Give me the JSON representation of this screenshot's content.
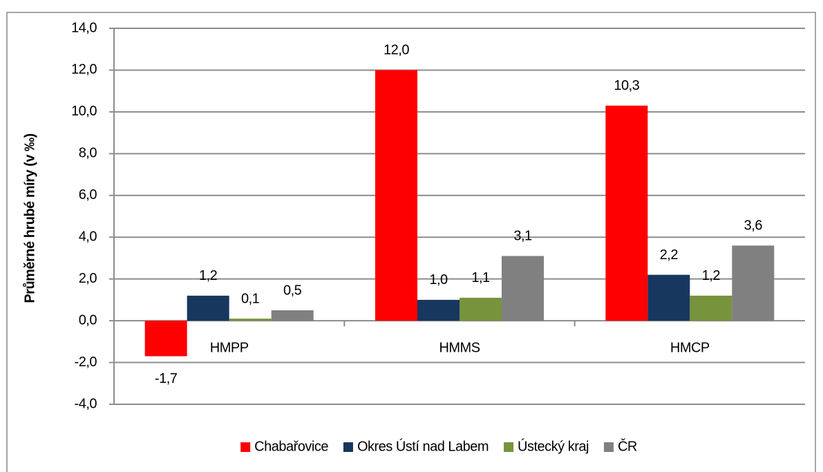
{
  "chart_data": {
    "type": "bar",
    "y_label": "Průměrné hrubé míry (v ‰)",
    "categories": [
      "HMPP",
      "HMMS",
      "HMCP"
    ],
    "series": [
      {
        "name": "Chabařovice",
        "color": "#ff0000",
        "values": [
          -1.7,
          12.0,
          10.3
        ],
        "value_labels": [
          "-1,7",
          "12,0",
          "10,3"
        ]
      },
      {
        "name": "Okres Ústí nad Labem",
        "color": "#17375e",
        "values": [
          1.2,
          1.0,
          2.2
        ],
        "value_labels": [
          "1,2",
          "1,0",
          "2,2"
        ]
      },
      {
        "name": "Ústecký kraj",
        "color": "#77933c",
        "values": [
          0.1,
          1.1,
          1.2
        ],
        "value_labels": [
          "0,1",
          "1,1",
          "1,2"
        ]
      },
      {
        "name": "ČR",
        "color": "#808080",
        "values": [
          0.5,
          3.1,
          3.6
        ],
        "value_labels": [
          "0,5",
          "3,1",
          "3,6"
        ]
      }
    ],
    "ylim": [
      -4,
      14
    ],
    "yticks": [
      {
        "value": -4,
        "label": "-4,0"
      },
      {
        "value": -2,
        "label": "-2,0"
      },
      {
        "value": 0,
        "label": "0,0"
      },
      {
        "value": 2,
        "label": "2,0"
      },
      {
        "value": 4,
        "label": "4,0"
      },
      {
        "value": 6,
        "label": "6,0"
      },
      {
        "value": 8,
        "label": "8,0"
      },
      {
        "value": 10,
        "label": "10,0"
      },
      {
        "value": 12,
        "label": "12,0"
      },
      {
        "value": 14,
        "label": "14,0"
      }
    ],
    "grid": true,
    "legend": "bottom"
  }
}
